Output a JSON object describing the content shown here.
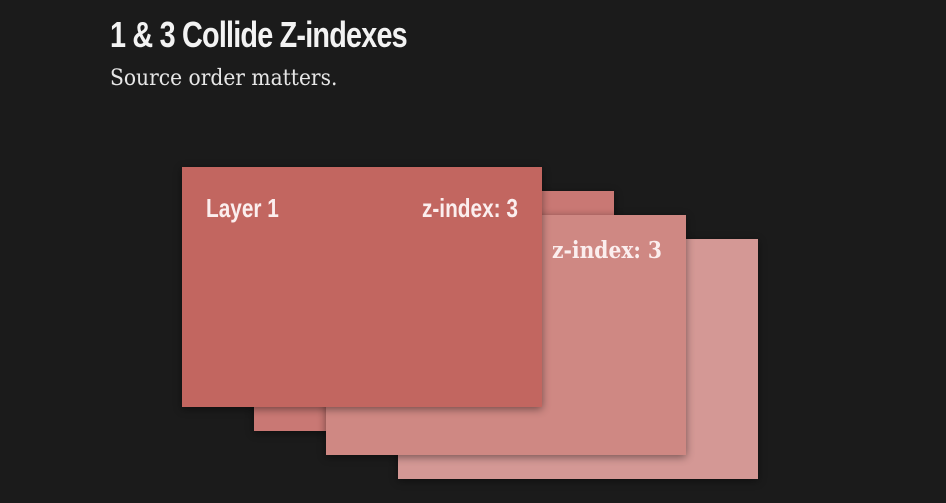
{
  "header": {
    "title": "1 & 3 Collide Z-indexes",
    "subtitle": "Source order matters."
  },
  "layers": [
    {
      "label": "Layer 1",
      "z_label": "z-index: 3",
      "color": "#c26660"
    },
    {
      "label": "",
      "z_label": "",
      "color": "#c97874"
    },
    {
      "label": "",
      "z_label": "z-index: 3",
      "color": "#cf8883"
    },
    {
      "label": "",
      "z_label": "",
      "color": "#d49895"
    }
  ]
}
